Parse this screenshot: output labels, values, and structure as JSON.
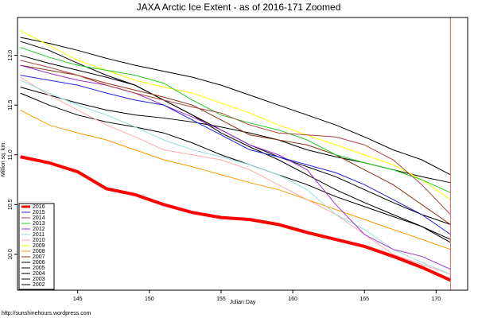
{
  "chart_data": {
    "type": "line",
    "title": "JAXA Arctic Ice Extent - as of 2016-171 Zoomed",
    "x_label": "Julian Day",
    "y_label": "Million sq. km.",
    "source": "http://sunshinehours.wordpress.com",
    "xlim": [
      140.8,
      172.2
    ],
    "ylim": [
      9.64,
      12.38
    ],
    "xticks": [
      145,
      150,
      155,
      160,
      165,
      170
    ],
    "yticks": [
      {
        "value": 10,
        "label": "10.0"
      },
      {
        "value": 10.5,
        "label": "10.5"
      },
      {
        "value": 11,
        "label": "11.0"
      },
      {
        "value": 11.5,
        "label": "11.5"
      },
      {
        "value": 12,
        "label": "12.0"
      }
    ],
    "vline": {
      "x": 171,
      "color": "#e06060"
    },
    "grid": false,
    "legend": "bottom-left",
    "x": [
      141,
      143,
      145,
      147,
      149,
      151,
      153,
      155,
      157,
      159,
      161,
      163,
      165,
      167,
      169,
      171
    ],
    "series": [
      {
        "name": "2016",
        "color": "#ff0000",
        "width": 4,
        "values": [
          10.98,
          10.92,
          10.83,
          10.66,
          10.6,
          10.5,
          10.42,
          10.37,
          10.35,
          10.3,
          10.22,
          10.15,
          10.08,
          9.98,
          9.87,
          9.74
        ]
      },
      {
        "name": "2015",
        "color": "#2222dd",
        "values": [
          11.8,
          11.75,
          11.7,
          11.62,
          11.55,
          11.5,
          11.35,
          11.2,
          11.05,
          10.98,
          10.9,
          10.82,
          10.7,
          10.55,
          10.4,
          10.2
        ]
      },
      {
        "name": "2014",
        "color": "#aa4444",
        "values": [
          11.95,
          11.88,
          11.8,
          11.7,
          11.62,
          11.55,
          11.48,
          11.42,
          11.3,
          11.22,
          11.2,
          11.18,
          11.1,
          10.95,
          10.7,
          10.4
        ]
      },
      {
        "name": "2013",
        "color": "#22cc22",
        "values": [
          12.08,
          11.98,
          11.9,
          11.85,
          11.8,
          11.72,
          11.55,
          11.4,
          11.32,
          11.25,
          11.15,
          11.0,
          10.92,
          10.85,
          10.75,
          10.62
        ]
      },
      {
        "name": "2012",
        "color": "#9933cc",
        "values": [
          11.9,
          11.82,
          11.75,
          11.7,
          11.62,
          11.5,
          11.38,
          11.25,
          11.1,
          11.0,
          10.85,
          10.5,
          10.2,
          10.05,
          9.98,
          9.85
        ]
      },
      {
        "name": "2011",
        "color": "#99dddd",
        "values": [
          11.75,
          11.62,
          11.5,
          11.4,
          11.28,
          11.15,
          11.05,
          10.98,
          10.9,
          10.8,
          10.65,
          10.4,
          10.25,
          10.05,
          9.92,
          9.8
        ]
      },
      {
        "name": "2010",
        "color": "#ffaaaa",
        "values": [
          11.78,
          11.6,
          11.45,
          11.3,
          11.18,
          11.05,
          11.0,
          10.95,
          10.85,
          10.7,
          10.55,
          10.4,
          10.2,
          10.0,
          9.9,
          9.8
        ]
      },
      {
        "name": "2009",
        "color": "#ffff00",
        "values": [
          12.25,
          12.1,
          11.95,
          11.85,
          11.75,
          11.68,
          11.62,
          11.52,
          11.42,
          11.3,
          11.2,
          11.1,
          11.0,
          10.9,
          10.75,
          10.55
        ]
      },
      {
        "name": "2008",
        "color": "#ff9900",
        "values": [
          11.45,
          11.3,
          11.22,
          11.15,
          11.05,
          10.95,
          10.88,
          10.8,
          10.72,
          10.65,
          10.55,
          10.45,
          10.35,
          10.25,
          10.15,
          10.05
        ]
      },
      {
        "name": "2007",
        "color": "#883311",
        "values": [
          11.9,
          11.85,
          11.8,
          11.72,
          11.65,
          11.58,
          11.5,
          11.35,
          11.2,
          11.15,
          11.1,
          11.0,
          10.85,
          10.7,
          10.5,
          10.3
        ]
      },
      {
        "name": "2006",
        "color": "#000000",
        "values": [
          12.18,
          12.12,
          12.05,
          11.97,
          11.9,
          11.84,
          11.78,
          11.7,
          11.6,
          11.5,
          11.4,
          11.3,
          11.18,
          11.05,
          10.95,
          10.8
        ]
      },
      {
        "name": "2005",
        "color": "#000000",
        "values": [
          12.14,
          12.05,
          11.92,
          11.8,
          11.7,
          11.55,
          11.4,
          11.25,
          11.1,
          10.98,
          10.88,
          10.78,
          10.65,
          10.52,
          10.4,
          10.3
        ]
      },
      {
        "name": "2004",
        "color": "#000000",
        "values": [
          11.68,
          11.6,
          11.52,
          11.45,
          11.4,
          11.37,
          11.33,
          11.28,
          11.22,
          11.15,
          11.05,
          10.98,
          10.92,
          10.85,
          10.78,
          10.72
        ]
      },
      {
        "name": "2003",
        "color": "#000000",
        "values": [
          11.62,
          11.5,
          11.4,
          11.33,
          11.28,
          11.22,
          11.12,
          11.0,
          10.9,
          10.8,
          10.7,
          10.58,
          10.48,
          10.38,
          10.28,
          10.15
        ]
      },
      {
        "name": "2002",
        "color": "#000000",
        "values": [
          12.0,
          11.92,
          11.85,
          11.78,
          11.7,
          11.55,
          11.4,
          11.22,
          11.08,
          10.95,
          10.8,
          10.65,
          10.52,
          10.4,
          10.28,
          10.12
        ]
      }
    ]
  }
}
